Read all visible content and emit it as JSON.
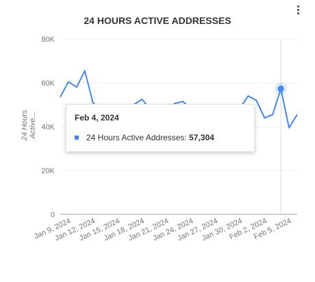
{
  "chart_data": {
    "type": "line",
    "title": "24 HOURS ACTIVE ADDRESSES",
    "ylabel": "24 Hours Active...",
    "xlabel": "",
    "ylim": [
      0,
      80000
    ],
    "yticks": [
      "0",
      "20K",
      "40K",
      "60K",
      "80K"
    ],
    "ytick_values": [
      0,
      20000,
      40000,
      60000,
      80000
    ],
    "xtick_labels": [
      "Jan 9, 2024",
      "Jan 12, 2024",
      "Jan 15, 2024",
      "Jan 18, 2024",
      "Jan 21, 2024",
      "Jan 24, 2024",
      "Jan 27, 2024",
      "Jan 30, 2024",
      "Feb 2, 2024",
      "Feb 5, 2024"
    ],
    "x": [
      "2024-01-08",
      "2024-01-09",
      "2024-01-10",
      "2024-01-11",
      "2024-01-12",
      "2024-01-13",
      "2024-01-14",
      "2024-01-15",
      "2024-01-16",
      "2024-01-17",
      "2024-01-18",
      "2024-01-19",
      "2024-01-20",
      "2024-01-21",
      "2024-01-22",
      "2024-01-23",
      "2024-01-24",
      "2024-01-25",
      "2024-01-26",
      "2024-01-27",
      "2024-01-28",
      "2024-01-29",
      "2024-01-30",
      "2024-01-31",
      "2024-02-01",
      "2024-02-02",
      "2024-02-03",
      "2024-02-04",
      "2024-02-05",
      "2024-02-06"
    ],
    "series": [
      {
        "name": "24 Hours Active Addresses",
        "color": "#4285f4",
        "values": [
          53500,
          60500,
          58000,
          65500,
          51000,
          47000,
          46000,
          47000,
          47500,
          50000,
          52500,
          48000,
          47000,
          48000,
          50500,
          51500,
          48000,
          47000,
          47500,
          48000,
          47000,
          48000,
          48500,
          54000,
          52000,
          44000,
          45500,
          57304,
          39500,
          45500
        ]
      }
    ],
    "highlight": {
      "date": "2024-02-04",
      "value": 57304
    },
    "grid": true
  },
  "tooltip": {
    "date": "Feb 4, 2024",
    "series_label": "24 Hours Active Addresses:",
    "value": "57,304"
  },
  "icons": {
    "menu": "more-vert-icon"
  }
}
